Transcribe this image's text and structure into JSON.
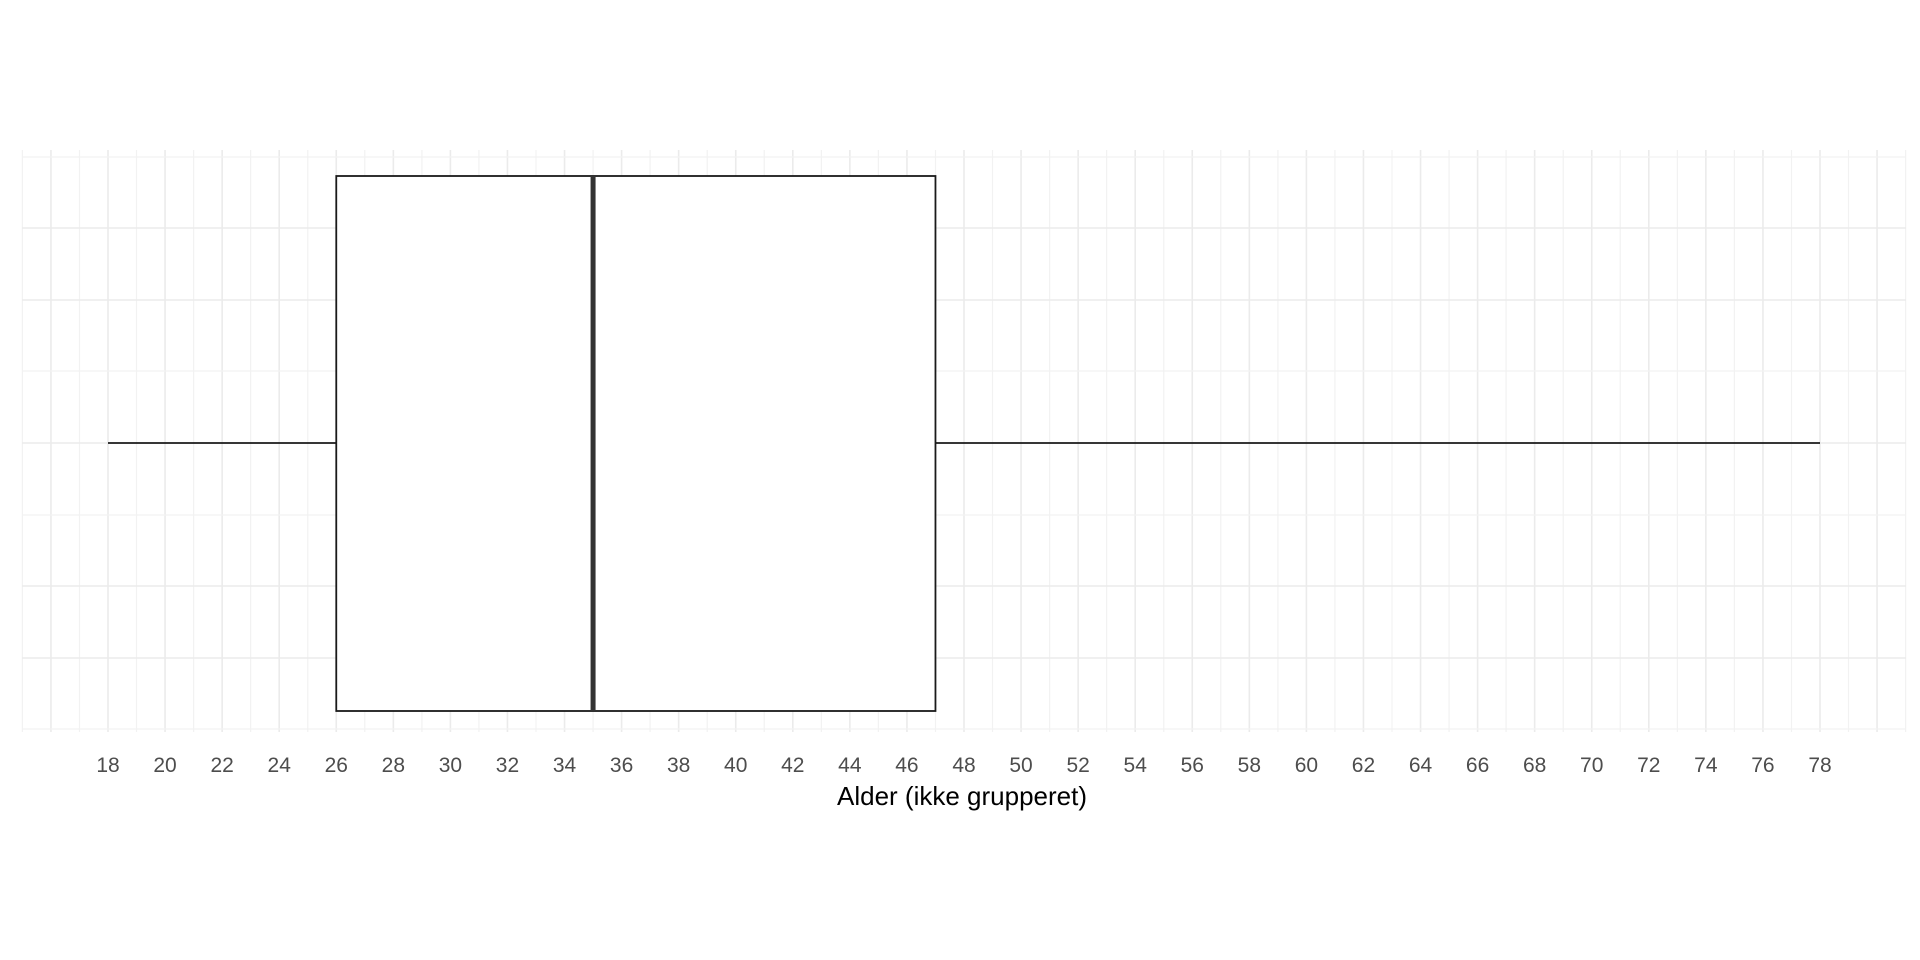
{
  "chart_data": {
    "type": "boxplot",
    "xlabel": "Alder (ikke grupperet)",
    "x_ticks": [
      18,
      20,
      22,
      24,
      26,
      28,
      30,
      32,
      34,
      36,
      38,
      40,
      42,
      44,
      46,
      48,
      50,
      52,
      54,
      56,
      58,
      60,
      62,
      64,
      66,
      68,
      70,
      72,
      74,
      76,
      78
    ],
    "xlim": [
      15,
      81
    ],
    "grid": true,
    "box": {
      "min": 18,
      "q1": 26,
      "median": 35,
      "q3": 47,
      "max": 78
    },
    "colors": {
      "box_fill": "#ffffff",
      "box_stroke": "#1a1a1a",
      "median": "#333333",
      "grid": "#ebebeb"
    }
  }
}
